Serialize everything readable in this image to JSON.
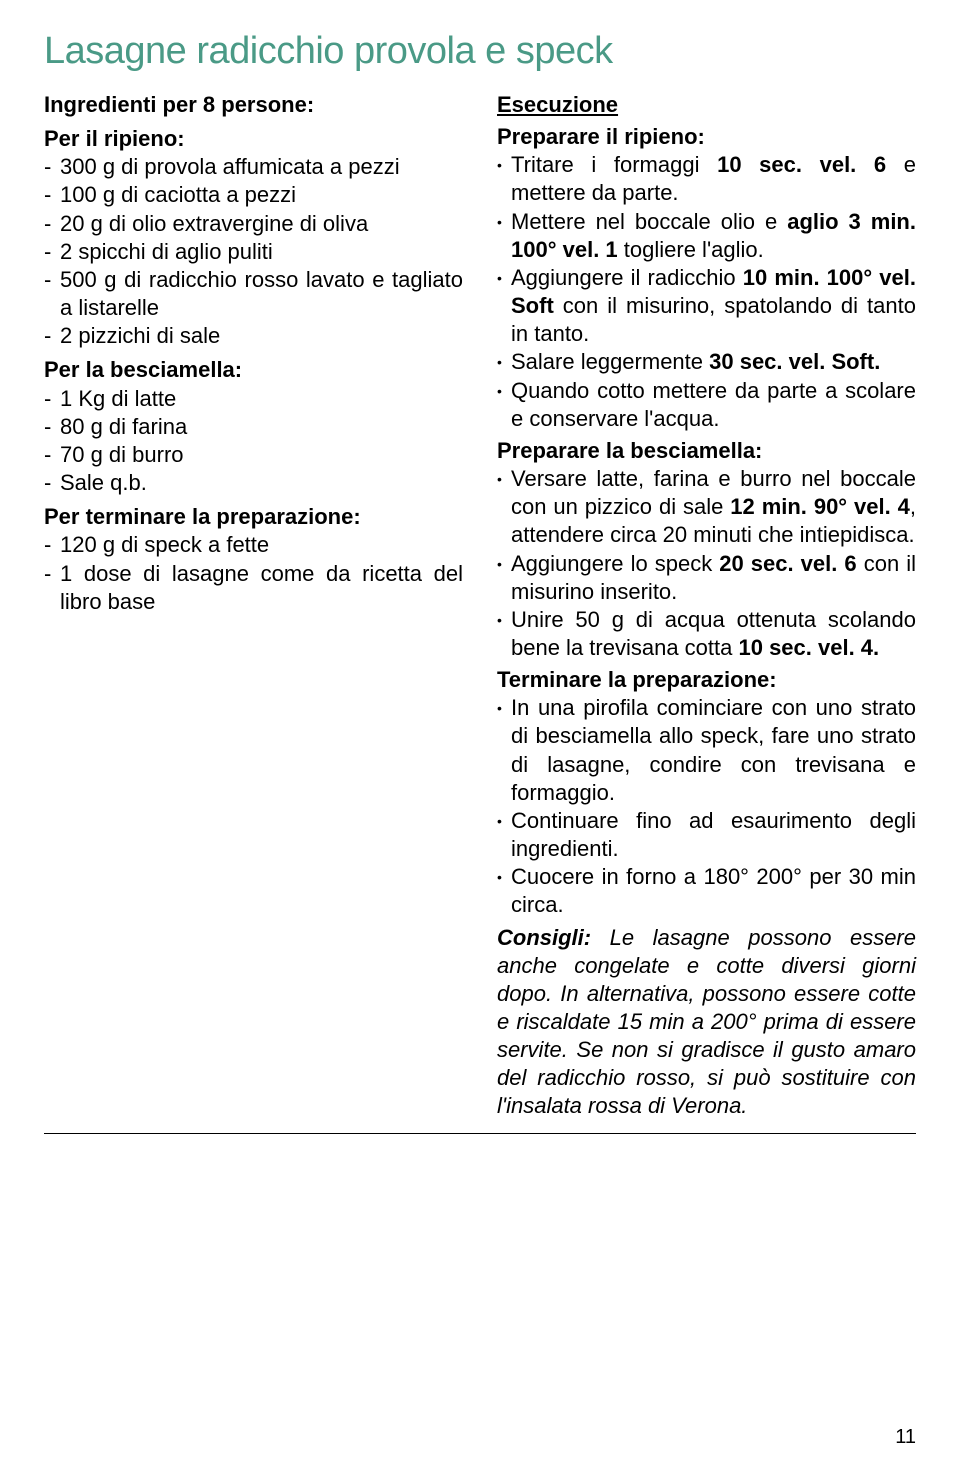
{
  "title": {
    "text": "Lasagne radicchio provola e speck",
    "color": "#4a9a86",
    "fontsize": 38
  },
  "pagenum": "11",
  "left": {
    "servings": "Ingredienti per 8 persone:",
    "groups": [
      {
        "label": "Per il ripieno:",
        "items": [
          "300 g di provola affumicata a pezzi",
          "100 g di caciotta a pezzi",
          "20 g di olio extravergine di oliva",
          "2 spicchi di aglio puliti",
          "500 g di radicchio rosso lavato e tagliato a listarelle",
          "2 pizzichi di sale"
        ]
      },
      {
        "label": "Per la besciamella:",
        "items": [
          "1 Kg di latte",
          "80 g di farina",
          "70 g di burro",
          "Sale q.b."
        ]
      },
      {
        "label": "Per terminare la preparazione:",
        "items": [
          "120 g di speck a fette",
          "1 dose di lasagne come da ricetta del libro base"
        ]
      }
    ]
  },
  "right": {
    "exec": "Esecuzione",
    "sections": [
      {
        "heading": "Preparare il ripieno:",
        "bullets": [
          [
            {
              "t": "Tritare i formaggi "
            },
            {
              "t": "10 sec. vel. 6",
              "b": true
            },
            {
              "t": " e mettere da parte."
            }
          ],
          [
            {
              "t": "Mettere nel boccale olio e "
            },
            {
              "t": "aglio 3 min. 100° vel. 1",
              "b": true
            },
            {
              "t": " togliere l'aglio."
            }
          ],
          [
            {
              "t": "Aggiungere il radicchio "
            },
            {
              "t": "10 min. 100° vel. Soft",
              "b": true
            },
            {
              "t": " con il misurino, spatolando di tanto in tanto."
            }
          ],
          [
            {
              "t": "Salare leggermente "
            },
            {
              "t": "30 sec. vel. Soft.",
              "b": true
            }
          ],
          [
            {
              "t": "Quando cotto mettere da parte a scolare e conservare l'acqua."
            }
          ]
        ]
      },
      {
        "heading": "Preparare la besciamella:",
        "bullets": [
          [
            {
              "t": "Versare latte, farina e burro nel boccale con un pizzico di sale "
            },
            {
              "t": "12 min. 90° vel. 4",
              "b": true
            },
            {
              "t": ", attendere circa 20 minuti che intiepidisca."
            }
          ],
          [
            {
              "t": "Aggiungere lo speck "
            },
            {
              "t": "20 sec. vel. 6",
              "b": true
            },
            {
              "t": " con il misurino inserito."
            }
          ],
          [
            {
              "t": "Unire 50 g di acqua ottenuta scolando bene la trevisana cotta "
            },
            {
              "t": "10 sec. vel. 4.",
              "b": true
            }
          ]
        ]
      },
      {
        "heading": "Terminare la preparazione:",
        "bullets": [
          [
            {
              "t": "In una pirofila cominciare con uno strato di besciamella allo speck, fare uno strato di lasagne, condire con trevisana e formaggio."
            }
          ],
          [
            {
              "t": "Continuare fino ad esaurimento degli ingredienti."
            }
          ],
          [
            {
              "t": "Cuocere in forno a 180° 200° per 30 min circa."
            }
          ]
        ]
      }
    ],
    "consigli_label": "Consigli:",
    "consigli": " Le lasagne possono essere anche congelate e cotte diversi giorni dopo. In alternativa, possono essere cotte e riscaldate 15 min a 200° prima di essere servite. Se non si gradisce il gusto amaro del radicchio rosso, si può sostituire con l'insalata rossa di Verona."
  }
}
